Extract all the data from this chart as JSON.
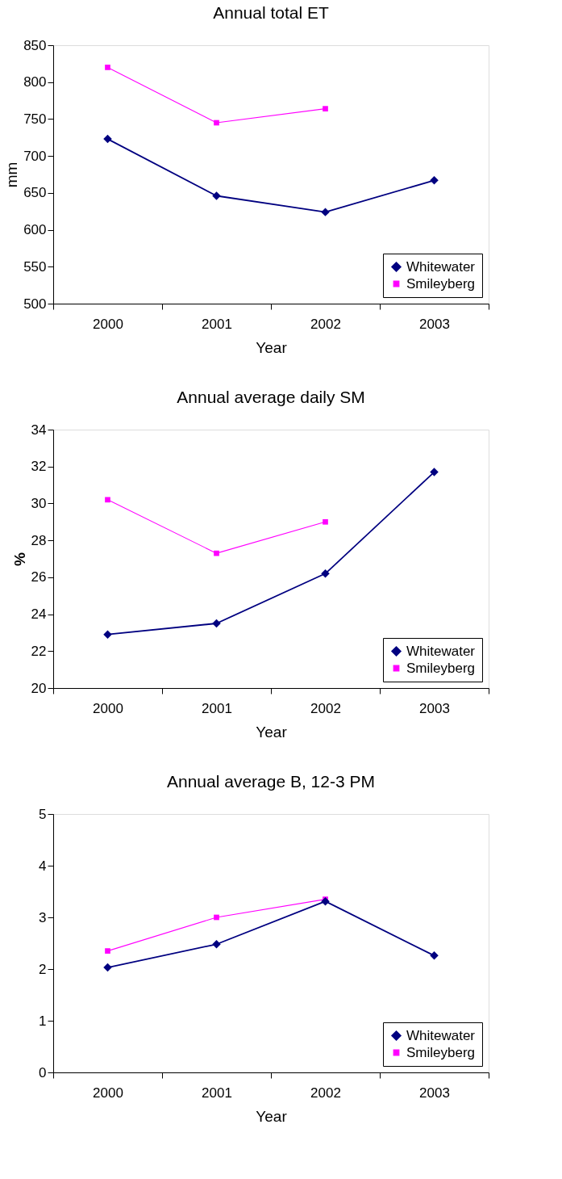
{
  "chart_data": [
    {
      "type": "line",
      "title": "Annual total ET",
      "xlabel": "Year",
      "ylabel": "mm",
      "categories": [
        "2000",
        "2001",
        "2002",
        "2003"
      ],
      "ylim": [
        500,
        850
      ],
      "yticks": [
        500,
        550,
        600,
        650,
        700,
        750,
        800,
        850
      ],
      "grid": false,
      "legend": "bottom right",
      "series": [
        {
          "name": "Whitewater",
          "color": "#000080",
          "marker": "diamond",
          "values": [
            723,
            646,
            624,
            667
          ]
        },
        {
          "name": "Smileyberg",
          "color": "#ff00ff",
          "marker": "square",
          "values": [
            820,
            745,
            764,
            null
          ]
        }
      ]
    },
    {
      "type": "line",
      "title": "Annual average daily SM",
      "xlabel": "Year",
      "ylabel": "%",
      "categories": [
        "2000",
        "2001",
        "2002",
        "2003"
      ],
      "ylim": [
        20,
        34
      ],
      "yticks": [
        20,
        22,
        24,
        26,
        28,
        30,
        32,
        34
      ],
      "grid": false,
      "legend": "bottom right",
      "series": [
        {
          "name": "Whitewater",
          "color": "#000080",
          "marker": "diamond",
          "values": [
            22.9,
            23.5,
            26.2,
            31.7
          ]
        },
        {
          "name": "Smileyberg",
          "color": "#ff00ff",
          "marker": "square",
          "values": [
            30.2,
            27.3,
            29.0,
            null
          ]
        }
      ]
    },
    {
      "type": "line",
      "title": "Annual average B, 12-3 PM",
      "xlabel": "Year",
      "categories": [
        "2000",
        "2001",
        "2002",
        "2003"
      ],
      "ylim": [
        0,
        5
      ],
      "yticks": [
        0,
        1,
        2,
        3,
        4,
        5
      ],
      "grid": false,
      "legend": "bottom right",
      "series": [
        {
          "name": "Whitewater",
          "color": "#000080",
          "marker": "diamond",
          "values": [
            2.03,
            2.48,
            3.31,
            2.26
          ]
        },
        {
          "name": "Smileyberg",
          "color": "#ff00ff",
          "marker": "square",
          "values": [
            2.35,
            3.0,
            3.35,
            null
          ]
        }
      ]
    }
  ]
}
